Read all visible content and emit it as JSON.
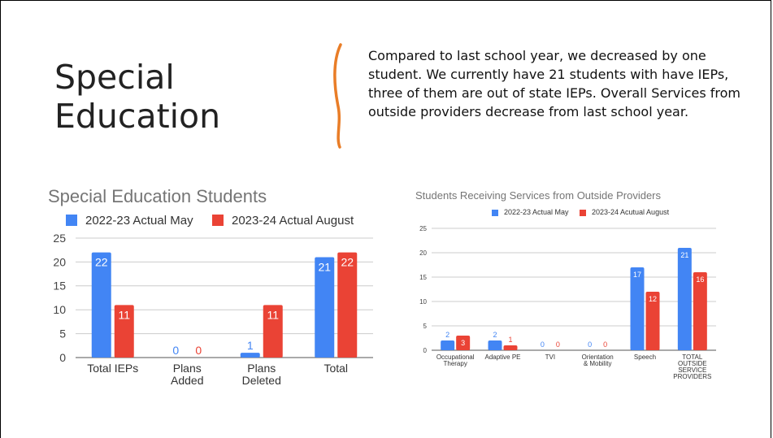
{
  "slide": {
    "title_line1": "Special",
    "title_line2": "Education",
    "summary": "Compared to last school year, we decreased by one student. We currently have 21 students with have IEPs, three of them are out of state IEPs. Overall Services from outside providers decrease from last school year."
  },
  "colors": {
    "blue": "#4285f4",
    "red": "#ea4335",
    "divider": "#e97d27"
  },
  "chart_data": [
    {
      "type": "bar",
      "title": "Special Education Students",
      "categories": [
        "Total IEPs",
        "Plans Added",
        "Plans Deleted",
        "Total"
      ],
      "series": [
        {
          "name": "2022-23 Actual May",
          "values": [
            22,
            0,
            1,
            21
          ]
        },
        {
          "name": "2023-24 Actual August",
          "values": [
            11,
            0,
            11,
            22
          ]
        }
      ],
      "ylim": [
        0,
        25
      ],
      "yticks": [
        0,
        5,
        10,
        15,
        20,
        25
      ],
      "grid": true,
      "legend": "top"
    },
    {
      "type": "bar",
      "title": "Students Receiving Services from Outside Providers",
      "categories": [
        "Occupational Therapy",
        "Adaptive PE",
        "TVI",
        "Orientation & Mobility",
        "Speech",
        "TOTAL OUTSIDE SERVICE PROVIDERS"
      ],
      "series": [
        {
          "name": "2022-23 Actual May",
          "values": [
            2,
            2,
            0,
            0,
            17,
            21
          ]
        },
        {
          "name": "2023-24 Acutual August",
          "values": [
            3,
            1,
            0,
            0,
            12,
            16
          ]
        }
      ],
      "ylim": [
        0,
        25
      ],
      "yticks": [
        0,
        5,
        10,
        15,
        20,
        25
      ],
      "grid": true,
      "legend": "top"
    }
  ]
}
